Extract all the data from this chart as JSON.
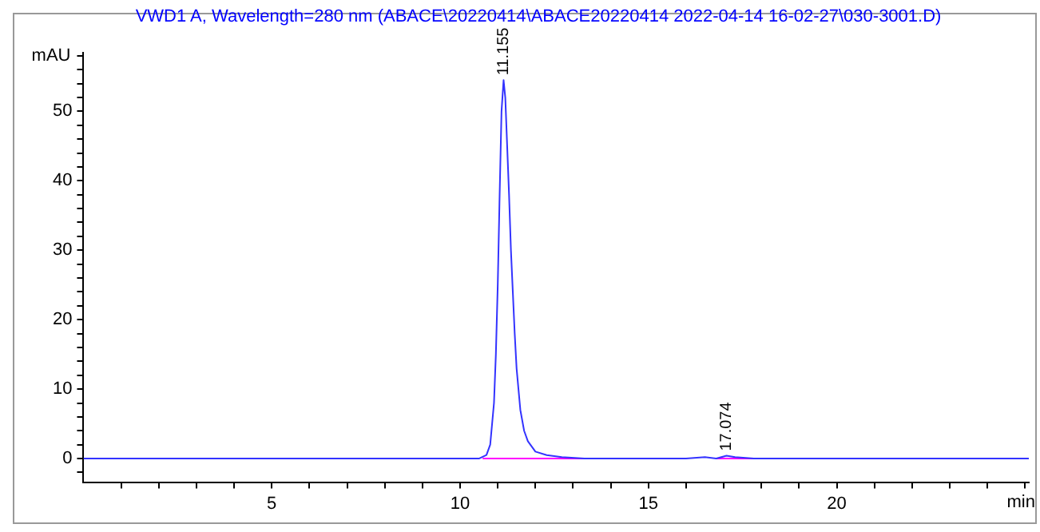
{
  "chart_data": {
    "type": "line",
    "title": "VWD1 A, Wavelength=280 nm (ABACE\\20220414\\ABACE20220414 2022-04-14 16-02-27\\030-3001.D)",
    "xlabel": "min",
    "ylabel": "mAU",
    "series": [
      {
        "color": "#3333ff",
        "x": [
          0,
          10.0,
          10.5,
          10.7,
          10.8,
          10.9,
          10.95,
          11.0,
          11.05,
          11.1,
          11.155,
          11.2,
          11.25,
          11.3,
          11.35,
          11.4,
          11.45,
          11.5,
          11.6,
          11.7,
          11.8,
          12.0,
          12.3,
          12.7,
          13.3,
          16.0,
          16.5,
          16.8,
          17.074,
          17.3,
          17.8,
          19.0,
          25.1
        ],
        "values": [
          0,
          0,
          0,
          0.5,
          2,
          8,
          15,
          25,
          38,
          50,
          54.5,
          52,
          45,
          38,
          30,
          24,
          18,
          13,
          7,
          4,
          2.5,
          1,
          0.5,
          0.2,
          0,
          0,
          0.2,
          0,
          0.4,
          0.2,
          0,
          0,
          0
        ]
      },
      {
        "color": "#ff00ff",
        "x": [
          10.6,
          13.3,
          13.4,
          16.8,
          19.0
        ],
        "values": [
          0,
          0,
          null,
          0,
          0
        ]
      }
    ],
    "annotations": [
      {
        "text": "11.155",
        "x": 11.155,
        "y": 54.5
      },
      {
        "text": "17.074",
        "x": 17.074,
        "y": 0.4
      }
    ],
    "xlim": [
      0,
      25.1
    ],
    "ylim": [
      -3.4,
      58.4
    ],
    "xticks": [
      {
        "value": 1,
        "label": null
      },
      {
        "value": 2,
        "label": null
      },
      {
        "value": 3,
        "label": null
      },
      {
        "value": 4,
        "label": null
      },
      5,
      {
        "value": 6,
        "label": null
      },
      {
        "value": 7,
        "label": null
      },
      {
        "value": 8,
        "label": null
      },
      {
        "value": 9,
        "label": null
      },
      10,
      {
        "value": 11,
        "label": null
      },
      {
        "value": 12,
        "label": null
      },
      {
        "value": 13,
        "label": null
      },
      {
        "value": 14,
        "label": null
      },
      15,
      {
        "value": 16,
        "label": null
      },
      {
        "value": 17,
        "label": null
      },
      {
        "value": 18,
        "label": null
      },
      {
        "value": 19,
        "label": null
      },
      20,
      {
        "value": 21,
        "label": null
      },
      {
        "value": 22,
        "label": null
      },
      {
        "value": 23,
        "label": null
      },
      {
        "value": 24,
        "label": null
      },
      {
        "value": 25,
        "label": null
      }
    ],
    "yticks": [
      {
        "value": -2,
        "label": null
      },
      0,
      {
        "value": 2,
        "label": null
      },
      {
        "value": 4,
        "label": null
      },
      {
        "value": 6,
        "label": null
      },
      {
        "value": 8,
        "label": null
      },
      10,
      {
        "value": 12,
        "label": null
      },
      {
        "value": 14,
        "label": null
      },
      {
        "value": 16,
        "label": null
      },
      {
        "value": 18,
        "label": null
      },
      20,
      {
        "value": 22,
        "label": null
      },
      {
        "value": 24,
        "label": null
      },
      {
        "value": 26,
        "label": null
      },
      {
        "value": 28,
        "label": null
      },
      30,
      {
        "value": 32,
        "label": null
      },
      {
        "value": 34,
        "label": null
      },
      {
        "value": 36,
        "label": null
      },
      {
        "value": 38,
        "label": null
      },
      40,
      {
        "value": 42,
        "label": null
      },
      {
        "value": 44,
        "label": null
      },
      {
        "value": 46,
        "label": null
      },
      {
        "value": 48,
        "label": null
      },
      50,
      {
        "value": 52,
        "label": null
      },
      {
        "value": 54,
        "label": null
      },
      {
        "value": 56,
        "label": null
      },
      {
        "value": 58,
        "label": null
      }
    ],
    "grid": false,
    "legend": false,
    "marker": "none",
    "line_style": "solid"
  }
}
